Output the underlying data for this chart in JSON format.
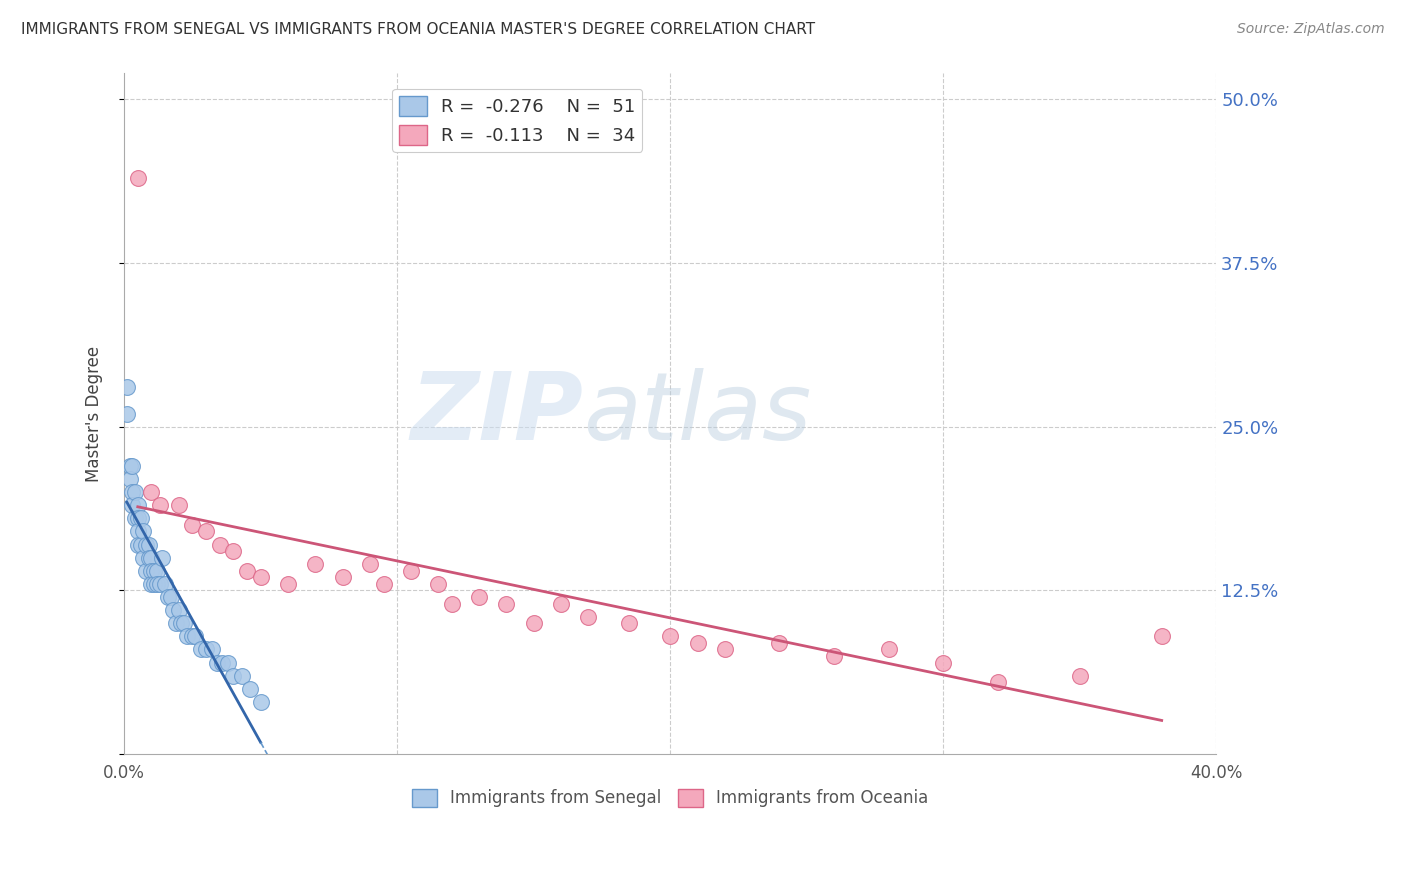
{
  "title": "IMMIGRANTS FROM SENEGAL VS IMMIGRANTS FROM OCEANIA MASTER'S DEGREE CORRELATION CHART",
  "source": "Source: ZipAtlas.com",
  "ylabel": "Master's Degree",
  "yticks": [
    0.0,
    0.125,
    0.25,
    0.375,
    0.5
  ],
  "ytick_labels": [
    "",
    "12.5%",
    "25.0%",
    "37.5%",
    "50.0%"
  ],
  "xlim": [
    0.0,
    0.4
  ],
  "ylim": [
    0.0,
    0.52
  ],
  "series1_name": "Immigrants from Senegal",
  "series1_color": "#aac8e8",
  "series1_edge_color": "#6699cc",
  "series1_line_color": "#3366aa",
  "series1_R": -0.276,
  "series1_N": 51,
  "series2_name": "Immigrants from Oceania",
  "series2_color": "#f4a8bc",
  "series2_edge_color": "#dd6688",
  "series2_line_color": "#cc5577",
  "series2_R": -0.113,
  "series2_N": 34,
  "senegal_x": [
    0.001,
    0.001,
    0.002,
    0.002,
    0.003,
    0.003,
    0.003,
    0.004,
    0.004,
    0.005,
    0.005,
    0.005,
    0.005,
    0.006,
    0.006,
    0.007,
    0.007,
    0.008,
    0.008,
    0.009,
    0.009,
    0.01,
    0.01,
    0.01,
    0.011,
    0.011,
    0.012,
    0.012,
    0.013,
    0.014,
    0.015,
    0.016,
    0.017,
    0.018,
    0.019,
    0.02,
    0.021,
    0.022,
    0.023,
    0.025,
    0.026,
    0.028,
    0.03,
    0.032,
    0.034,
    0.036,
    0.038,
    0.04,
    0.043,
    0.046,
    0.05
  ],
  "senegal_y": [
    0.28,
    0.26,
    0.22,
    0.21,
    0.22,
    0.2,
    0.19,
    0.2,
    0.18,
    0.19,
    0.18,
    0.17,
    0.16,
    0.18,
    0.16,
    0.17,
    0.15,
    0.16,
    0.14,
    0.16,
    0.15,
    0.15,
    0.14,
    0.13,
    0.14,
    0.13,
    0.14,
    0.13,
    0.13,
    0.15,
    0.13,
    0.12,
    0.12,
    0.11,
    0.1,
    0.11,
    0.1,
    0.1,
    0.09,
    0.09,
    0.09,
    0.08,
    0.08,
    0.08,
    0.07,
    0.07,
    0.07,
    0.06,
    0.06,
    0.05,
    0.04
  ],
  "oceania_x": [
    0.005,
    0.01,
    0.013,
    0.02,
    0.025,
    0.03,
    0.035,
    0.04,
    0.045,
    0.05,
    0.06,
    0.07,
    0.08,
    0.09,
    0.095,
    0.105,
    0.115,
    0.12,
    0.13,
    0.14,
    0.15,
    0.16,
    0.17,
    0.185,
    0.2,
    0.21,
    0.22,
    0.24,
    0.26,
    0.28,
    0.3,
    0.32,
    0.35,
    0.38
  ],
  "oceania_y": [
    0.44,
    0.2,
    0.19,
    0.19,
    0.175,
    0.17,
    0.16,
    0.155,
    0.14,
    0.135,
    0.13,
    0.145,
    0.135,
    0.145,
    0.13,
    0.14,
    0.13,
    0.115,
    0.12,
    0.115,
    0.1,
    0.115,
    0.105,
    0.1,
    0.09,
    0.085,
    0.08,
    0.085,
    0.075,
    0.08,
    0.07,
    0.055,
    0.06,
    0.09
  ],
  "watermark_zip": "ZIP",
  "watermark_atlas": "atlas",
  "background_color": "#ffffff",
  "grid_color": "#cccccc"
}
